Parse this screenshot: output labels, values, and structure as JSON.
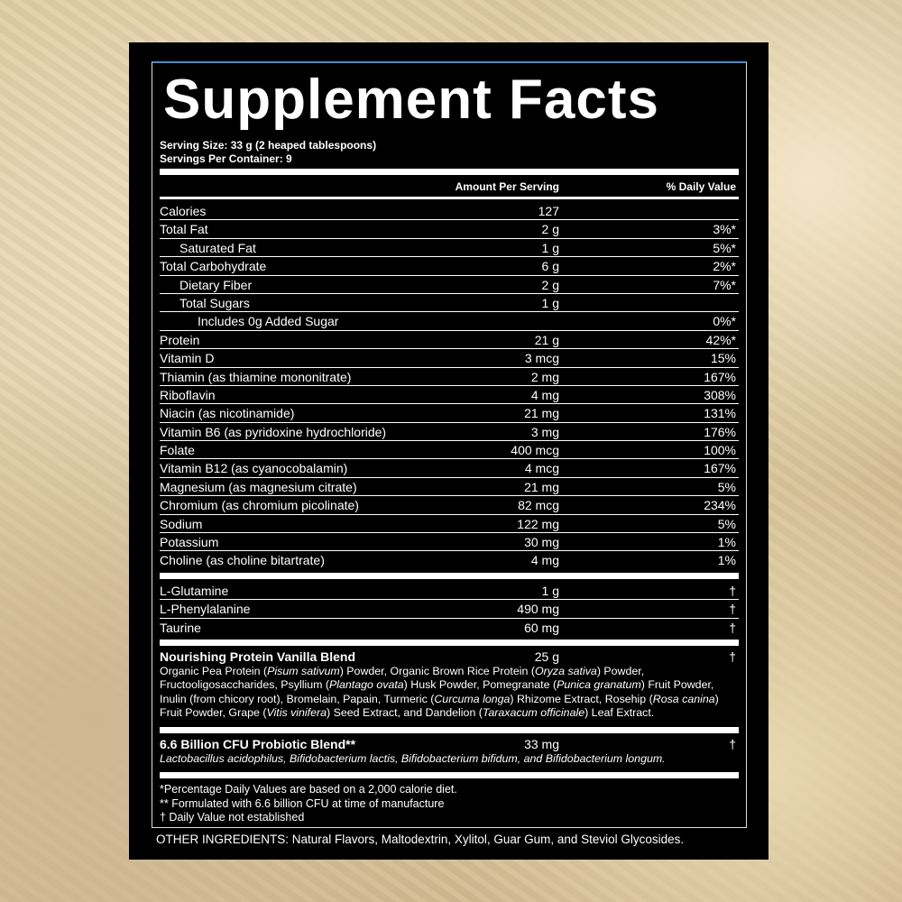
{
  "title": "Supplement Facts",
  "serving_size": "Serving Size: 33 g (2 heaped tablespoons)",
  "servings_per_container": "Servings Per Container: 9",
  "header": {
    "amount": "Amount Per Serving",
    "dv": "% Daily Value"
  },
  "nutrients": [
    {
      "name": "Calories",
      "amount": "127",
      "dv": "",
      "indent": 0
    },
    {
      "name": "Total Fat",
      "amount": "2 g",
      "dv": "3%*",
      "indent": 0
    },
    {
      "name": "Saturated Fat",
      "amount": "1 g",
      "dv": "5%*",
      "indent": 1
    },
    {
      "name": "Total Carbohydrate",
      "amount": "6 g",
      "dv": "2%*",
      "indent": 0
    },
    {
      "name": "Dietary Fiber",
      "amount": "2 g",
      "dv": "7%*",
      "indent": 1
    },
    {
      "name": "Total Sugars",
      "amount": "1 g",
      "dv": "",
      "indent": 1
    },
    {
      "name": "Includes 0g Added Sugar",
      "amount": "",
      "dv": "0%*",
      "indent": 2
    },
    {
      "name": "Protein",
      "amount": "21 g",
      "dv": "42%*",
      "indent": 0
    },
    {
      "name": "Vitamin D",
      "amount": "3 mcg",
      "dv": "15%",
      "indent": 0
    },
    {
      "name": "Thiamin (as thiamine mononitrate)",
      "amount": "2 mg",
      "dv": "167%",
      "indent": 0
    },
    {
      "name": "Riboflavin",
      "amount": "4 mg",
      "dv": "308%",
      "indent": 0
    },
    {
      "name": "Niacin (as nicotinamide)",
      "amount": "21 mg",
      "dv": "131%",
      "indent": 0
    },
    {
      "name": "Vitamin B6 (as pyridoxine hydrochloride)",
      "amount": "3 mg",
      "dv": "176%",
      "indent": 0
    },
    {
      "name": "Folate",
      "amount": "400 mcg",
      "dv": "100%",
      "indent": 0
    },
    {
      "name": "Vitamin B12 (as cyanocobalamin)",
      "amount": "4 mcg",
      "dv": "167%",
      "indent": 0
    },
    {
      "name": "Magnesium (as magnesium citrate)",
      "amount": "21 mg",
      "dv": "5%",
      "indent": 0
    },
    {
      "name": "Chromium (as chromium picolinate)",
      "amount": "82 mcg",
      "dv": "234%",
      "indent": 0
    },
    {
      "name": "Sodium",
      "amount": "122 mg",
      "dv": "5%",
      "indent": 0
    },
    {
      "name": "Potassium",
      "amount": "30 mg",
      "dv": "1%",
      "indent": 0
    },
    {
      "name": "Choline (as choline bitartrate)",
      "amount": "4 mg",
      "dv": "1%",
      "indent": 0
    }
  ],
  "amino_acids": [
    {
      "name": "L-Glutamine",
      "amount": "1 g",
      "dv": "†"
    },
    {
      "name": "L-Phenylalanine",
      "amount": "490 mg",
      "dv": "†"
    },
    {
      "name": "Taurine",
      "amount": "60 mg",
      "dv": "†"
    }
  ],
  "protein_blend": {
    "name": "Nourishing Protein Vanilla Blend",
    "amount": "25 g",
    "dv": "†",
    "ingredients_html": "Organic Pea Protein (<i>Pisum sativum</i>) Powder, Organic Brown Rice Protein (<i>Oryza sativa</i>) Powder, Fructooligosaccharides, Psyllium (<i>Plantago ovata</i>) Husk Powder, Pomegranate (<i>Punica granatum</i>) Fruit Powder, Inulin (from chicory root), Bromelain, Papain, Turmeric (<i>Curcuma longa</i>) Rhizome Extract, Rosehip (<i>Rosa canina</i>) Fruit Powder, Grape (<i>Vitis vinifera</i>) Seed Extract, and Dandelion (<i>Taraxacum officinale</i>) Leaf Extract."
  },
  "probiotic_blend": {
    "name": "6.6 Billion CFU Probiotic Blend**",
    "amount": "33 mg",
    "dv": "†",
    "ingredients": "Lactobacillus acidophilus, Bifidobacterium lactis, Bifidobacterium bifidum, and Bifidobacterium longum."
  },
  "footnotes": [
    "*Percentage Daily Values are based on a 2,000 calorie diet.",
    "** Formulated with 6.6 billion CFU at time of manufacture",
    "† Daily Value not established"
  ],
  "other_ingredients": "OTHER INGREDIENTS: Natural Flavors, Maltodextrin, Xylitol, Guar Gum, and Steviol Glycosides.",
  "colors": {
    "panel": "#000000",
    "text": "#ffffff",
    "accent_line": "#3a8fd6"
  }
}
